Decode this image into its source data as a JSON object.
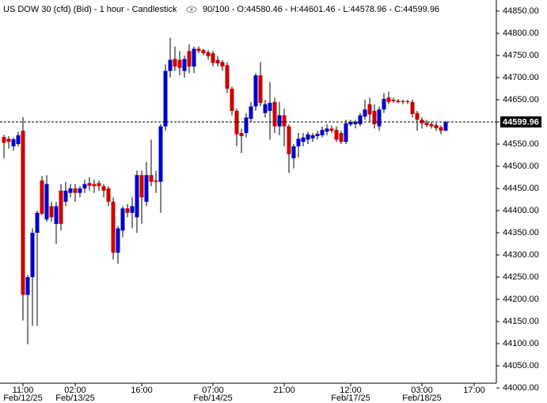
{
  "chart_data": {
    "type": "candlestick",
    "title": "US DOW 30 (cfd) (Bid) - 1 hour - Candlestick",
    "subtitle": "90/100 - O:44580.46 - H:44601.46 - L:44578.96 - C:44599.96",
    "categories": [
      null,
      null,
      null,
      null,
      "11:00",
      null,
      null,
      null,
      null,
      null,
      null,
      null,
      null,
      null,
      null,
      "02:00",
      null,
      null,
      null,
      null,
      null,
      null,
      null,
      null,
      null,
      null,
      null,
      null,
      null,
      "16:00",
      null,
      null,
      null,
      null,
      null,
      null,
      null,
      null,
      null,
      null,
      null,
      null,
      null,
      null,
      "07:00",
      null,
      null,
      null,
      null,
      null,
      null,
      null,
      null,
      null,
      null,
      null,
      null,
      null,
      null,
      "21:00",
      null,
      null,
      null,
      null,
      null,
      null,
      null,
      null,
      null,
      null,
      null,
      null,
      null,
      "12:00",
      null,
      null,
      null,
      null,
      null,
      null,
      null,
      null,
      null,
      null,
      null,
      null,
      null,
      null,
      "03:00",
      null,
      null,
      null,
      null,
      null,
      null,
      null,
      null,
      null,
      null,
      "17:00"
    ],
    "dates": [
      null,
      null,
      null,
      null,
      "Feb/12/25",
      null,
      null,
      null,
      null,
      null,
      null,
      null,
      null,
      null,
      null,
      "Feb/13/25",
      null,
      null,
      null,
      null,
      null,
      null,
      null,
      null,
      null,
      null,
      null,
      null,
      null,
      null,
      null,
      null,
      null,
      null,
      null,
      null,
      null,
      null,
      null,
      null,
      null,
      null,
      null,
      null,
      "Feb/14/25",
      null,
      null,
      null,
      null,
      null,
      null,
      null,
      null,
      null,
      null,
      null,
      null,
      null,
      null,
      null,
      null,
      null,
      null,
      null,
      null,
      null,
      null,
      null,
      null,
      null,
      null,
      null,
      null,
      "Feb/17/25",
      null,
      null,
      null,
      null,
      null,
      null,
      null,
      null,
      null,
      null,
      null,
      null,
      null,
      null,
      "Feb/18/25",
      null,
      null,
      null,
      null,
      null,
      null,
      null,
      null,
      null,
      null,
      null
    ],
    "open": [
      44566,
      44562,
      44545,
      44550,
      44580,
      44210,
      44250,
      44350,
      44468,
      44380,
      44410,
      44370,
      44445,
      44420,
      44440,
      44450,
      44440,
      44450,
      44462,
      44460,
      44462,
      44455,
      44450,
      44420,
      44305,
      44355,
      44405,
      44395,
      44385,
      44480,
      44420,
      44480,
      44468,
      44465,
      44590,
      44715,
      44742,
      44740,
      44715,
      44760,
      44725,
      44765,
      44762,
      44757,
      44755,
      44740,
      44735,
      44728,
      44675,
      44625,
      44575,
      44575,
      44607,
      44635,
      44705,
      44620,
      44625,
      44645,
      44590,
      44615,
      44590,
      44518,
      44545,
      44555,
      44560,
      44563,
      44568,
      44570,
      44578,
      44585,
      44582,
      44575,
      44555,
      44594,
      44595,
      44595,
      44612,
      44640,
      44625,
      44590,
      44628,
      44655,
      44650,
      44648,
      44647,
      44647,
      44645,
      44620,
      44605,
      44598,
      44595,
      44593,
      44588,
      44580.46,
      null,
      null,
      null,
      null,
      null,
      null
    ],
    "high": [
      44571,
      44568,
      44565,
      44578,
      44611,
      44255,
      44360,
      44400,
      44478,
      44480,
      44420,
      44420,
      44460,
      44465,
      44460,
      44460,
      44455,
      44470,
      44475,
      44470,
      44468,
      44460,
      44455,
      44430,
      44365,
      44410,
      44415,
      44430,
      44490,
      44490,
      44510,
      44560,
      44490,
      44595,
      44730,
      44790,
      44770,
      44760,
      44750,
      44775,
      44770,
      44770,
      44765,
      44762,
      44760,
      44748,
      44740,
      44735,
      44680,
      44630,
      44585,
      44620,
      44645,
      44710,
      44735,
      44650,
      44690,
      44655,
      44645,
      44630,
      44595,
      44550,
      44575,
      44575,
      44578,
      44575,
      44580,
      44590,
      44595,
      44592,
      44590,
      44580,
      44605,
      44605,
      44605,
      44620,
      44650,
      44655,
      44640,
      44635,
      44665,
      44668,
      44655,
      44652,
      44650,
      44650,
      44650,
      44625,
      44610,
      44605,
      44600,
      44598,
      44592,
      44601.46,
      null,
      null,
      null,
      null,
      null,
      null
    ],
    "low": [
      44518,
      44540,
      44535,
      44545,
      44152,
      44098,
      44140,
      44140,
      44390,
      44375,
      44375,
      44325,
      44355,
      44410,
      44430,
      44420,
      44430,
      44440,
      44445,
      44440,
      44445,
      44430,
      44410,
      44290,
      44280,
      44340,
      44385,
      44360,
      44350,
      44370,
      44410,
      44455,
      44440,
      44395,
      44580,
      44700,
      44715,
      44705,
      44700,
      44710,
      44710,
      44755,
      44750,
      44740,
      44725,
      44725,
      44715,
      44665,
      44615,
      44545,
      44530,
      44565,
      44600,
      44625,
      44635,
      44610,
      44560,
      44575,
      44570,
      44545,
      44485,
      44495,
      44520,
      44545,
      44550,
      44555,
      44560,
      44565,
      44570,
      44575,
      44555,
      44550,
      44550,
      44590,
      44585,
      44590,
      44605,
      44600,
      44585,
      44580,
      44620,
      44640,
      44643,
      44642,
      44640,
      44640,
      44610,
      44580,
      44585,
      44588,
      44585,
      44580,
      44572,
      44578.96,
      null,
      null,
      null,
      null,
      null,
      null
    ],
    "close": [
      44553,
      44555,
      44561,
      44570,
      44210,
      44250,
      44350,
      44395,
      44393,
      44460,
      44385,
      44410,
      44370,
      44445,
      44450,
      44440,
      44450,
      44460,
      44456,
      44455,
      44455,
      44445,
      44420,
      44305,
      44360,
      44405,
      44395,
      44410,
      44480,
      44430,
      44480,
      44465,
      44465,
      44590,
      44715,
      44740,
      44725,
      44722,
      44742,
      44725,
      44765,
      44760,
      44755,
      44748,
      44733,
      44732,
      44725,
      44675,
      44625,
      44572,
      44568,
      44610,
      44635,
      44705,
      44643,
      44640,
      44643,
      44590,
      44615,
      44590,
      44527,
      44545,
      44562,
      44565,
      44572,
      44570,
      44573,
      44582,
      44585,
      44580,
      44560,
      44555,
      44597,
      44600,
      44600,
      44615,
      44628,
      44617,
      44595,
      44628,
      44652,
      44645,
      44647,
      44645,
      44645,
      44645,
      44618,
      44605,
      44597,
      44593,
      44590,
      44586,
      44580,
      44599.96,
      null,
      null,
      null,
      null,
      null,
      null
    ],
    "up_color": "#0000cc",
    "down_color": "#cc0000",
    "wick_color": "#000000",
    "last_price": 44599.96,
    "ylim": [
      44000,
      44850
    ],
    "yticks": [
      {
        "value": 44000,
        "label": "44000.00"
      },
      {
        "value": 44050,
        "label": "44050.00"
      },
      {
        "value": 44100,
        "label": "44100.00"
      },
      {
        "value": 44150,
        "label": "44150.00"
      },
      {
        "value": 44200,
        "label": "44200.00"
      },
      {
        "value": 44250,
        "label": "44250.00"
      },
      {
        "value": 44300,
        "label": "44300.00"
      },
      {
        "value": 44350,
        "label": "44350.00"
      },
      {
        "value": 44400,
        "label": "44400.00"
      },
      {
        "value": 44450,
        "label": "44450.00"
      },
      {
        "value": 44500,
        "label": "44500.00"
      },
      {
        "value": 44550,
        "label": "44550.00"
      },
      {
        "value": 44600,
        "label": "44600.00"
      },
      {
        "value": 44650,
        "label": "44650.00"
      },
      {
        "value": 44700,
        "label": "44700.00"
      },
      {
        "value": 44750,
        "label": "44750.00"
      },
      {
        "value": 44800,
        "label": "44800.00"
      },
      {
        "value": 44850,
        "label": "44850.00"
      }
    ],
    "grid": false
  }
}
